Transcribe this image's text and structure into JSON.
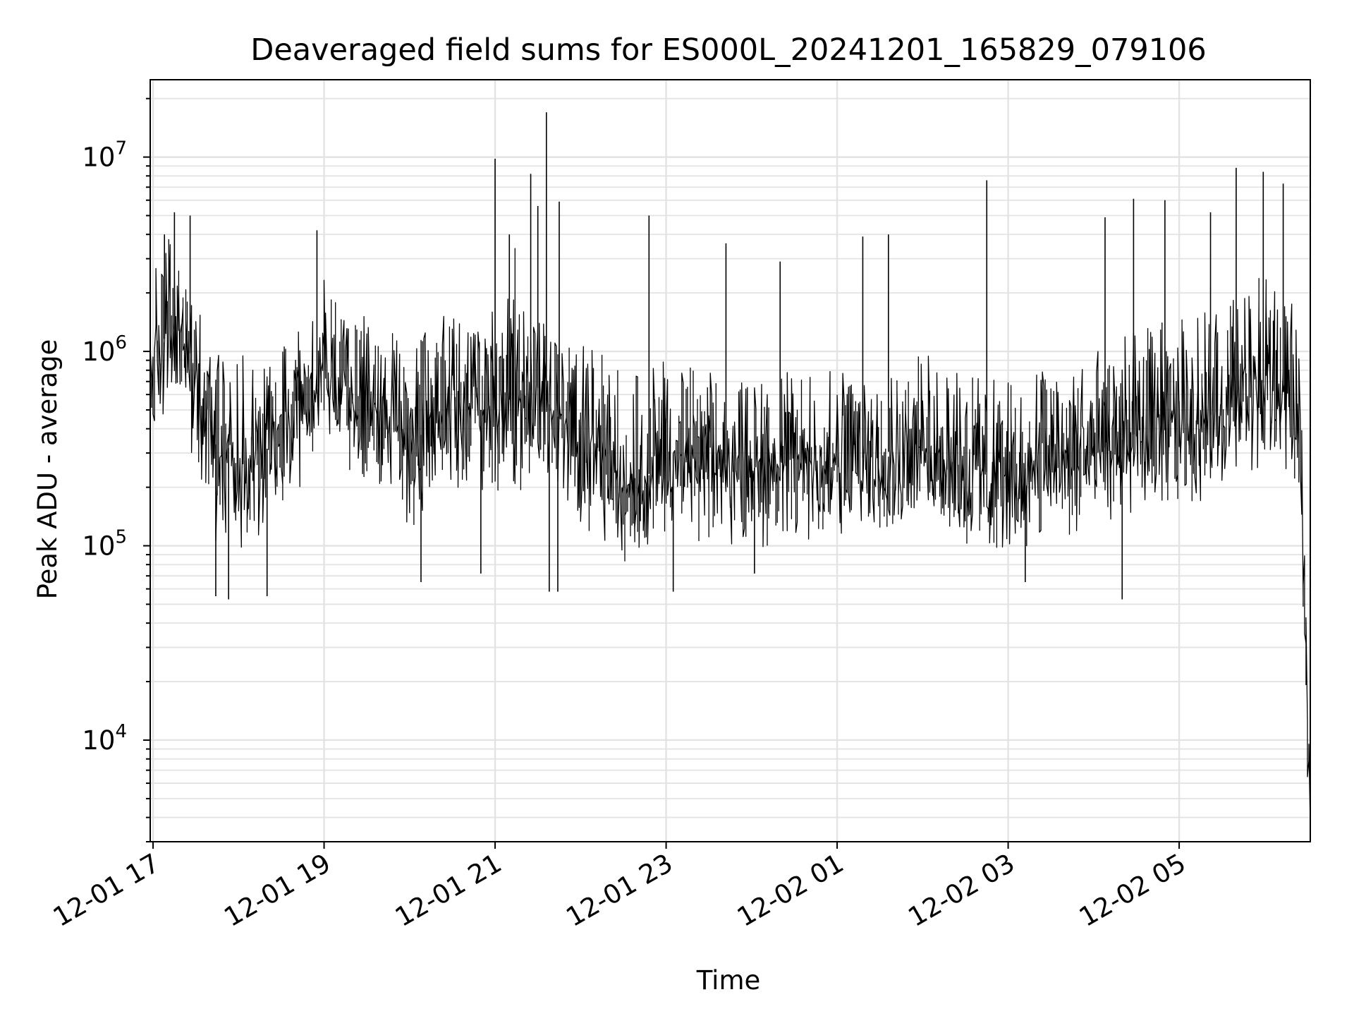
{
  "chart_data": {
    "type": "line",
    "title": "Deaveraged field sums for ES000L_20241201_165829_079106",
    "xlabel": "Time",
    "ylabel": "Peak ADU - average",
    "yscale": "log",
    "xlim": [
      "2024-12-01 16:58",
      "2024-12-02 06:32"
    ],
    "ylim": [
      3000,
      25000000
    ],
    "grid": "on",
    "line_color": "#000000",
    "grid_color": "#e3e3e3",
    "x_ticks": [
      {
        "value": "2024-12-01 17:00",
        "label": "12-01 17"
      },
      {
        "value": "2024-12-01 19:00",
        "label": "12-01 19"
      },
      {
        "value": "2024-12-01 21:00",
        "label": "12-01 21"
      },
      {
        "value": "2024-12-01 23:00",
        "label": "12-01 23"
      },
      {
        "value": "2024-12-02 01:00",
        "label": "12-02 01"
      },
      {
        "value": "2024-12-02 03:00",
        "label": "12-02 03"
      },
      {
        "value": "2024-12-02 05:00",
        "label": "12-02 05"
      }
    ],
    "y_ticks": [
      {
        "value": 10000,
        "base": "10",
        "exp": "4"
      },
      {
        "value": 100000,
        "base": "10",
        "exp": "5"
      },
      {
        "value": 1000000,
        "base": "10",
        "exp": "6"
      },
      {
        "value": 10000000,
        "base": "10",
        "exp": "7"
      }
    ],
    "series": [
      {
        "x": [
          "2024-12-01 16:58",
          "2024-12-01 17:00",
          "2024-12-01 17:05",
          "2024-12-01 17:10",
          "2024-12-01 17:15",
          "2024-12-01 17:20",
          "2024-12-01 17:25",
          "2024-12-01 17:30",
          "2024-12-01 17:35",
          "2024-12-01 17:40",
          "2024-12-01 17:45",
          "2024-12-01 17:50",
          "2024-12-01 17:55",
          "2024-12-01 18:00",
          "2024-12-01 18:15",
          "2024-12-01 18:30",
          "2024-12-01 18:45",
          "2024-12-01 19:00",
          "2024-12-01 19:15",
          "2024-12-01 19:30",
          "2024-12-01 19:45",
          "2024-12-01 20:00",
          "2024-12-01 20:15",
          "2024-12-01 20:30",
          "2024-12-01 20:45",
          "2024-12-01 21:00",
          "2024-12-01 21:15",
          "2024-12-01 21:30",
          "2024-12-01 21:45",
          "2024-12-01 22:00",
          "2024-12-01 22:15",
          "2024-12-01 22:30",
          "2024-12-01 22:45",
          "2024-12-01 23:00",
          "2024-12-01 23:30",
          "2024-12-02 00:00",
          "2024-12-02 00:30",
          "2024-12-02 01:00",
          "2024-12-02 01:30",
          "2024-12-02 02:00",
          "2024-12-02 02:30",
          "2024-12-02 03:00",
          "2024-12-02 03:30",
          "2024-12-02 04:00",
          "2024-12-02 04:30",
          "2024-12-02 05:00",
          "2024-12-02 05:30",
          "2024-12-02 05:50",
          "2024-12-02 06:00",
          "2024-12-02 06:10",
          "2024-12-02 06:20",
          "2024-12-02 06:25",
          "2024-12-02 06:28",
          "2024-12-02 06:30",
          "2024-12-02 06:32"
        ],
        "y": [
          600000,
          900000,
          1100000,
          1200000,
          1300000,
          1400000,
          1000000,
          900000,
          700000,
          500000,
          300000,
          350000,
          300000,
          250000,
          300000,
          350000,
          450000,
          800000,
          650000,
          550000,
          500000,
          300000,
          450000,
          550000,
          500000,
          500000,
          600000,
          650000,
          450000,
          350000,
          300000,
          200000,
          220000,
          300000,
          280000,
          250000,
          280000,
          260000,
          300000,
          320000,
          250000,
          230000,
          280000,
          300000,
          380000,
          400000,
          500000,
          600000,
          700000,
          650000,
          550000,
          300000,
          100000,
          15000,
          5000
        ],
        "y_upper": [
          1500000,
          2200000,
          3500000,
          4500000,
          3200000,
          3000000,
          2200000,
          1800000,
          1500000,
          1200000,
          1000000,
          900000,
          1100000,
          1000000,
          900000,
          1100000,
          1300000,
          2500000,
          1700000,
          1500000,
          1300000,
          1100000,
          1400000,
          1600000,
          1300000,
          1800000,
          3500000,
          1500000,
          1200000,
          1100000,
          1000000,
          800000,
          800000,
          900000,
          800000,
          700000,
          800000,
          800000,
          900000,
          1000000,
          800000,
          700000,
          900000,
          1000000,
          1300000,
          1500000,
          1800000,
          2200000,
          2500000,
          2000000,
          1800000,
          1000000,
          300000,
          80000,
          20000
        ],
        "y_lower": [
          200000,
          300000,
          400000,
          350000,
          450000,
          500000,
          350000,
          250000,
          200000,
          150000,
          100000,
          100000,
          110000,
          90000,
          110000,
          130000,
          150000,
          300000,
          250000,
          200000,
          180000,
          110000,
          160000,
          200000,
          180000,
          160000,
          180000,
          200000,
          150000,
          120000,
          110000,
          80000,
          85000,
          110000,
          100000,
          90000,
          100000,
          95000,
          110000,
          120000,
          90000,
          85000,
          100000,
          110000,
          140000,
          150000,
          180000,
          220000,
          250000,
          240000,
          200000,
          100000,
          40000,
          8000,
          3500
        ]
      }
    ],
    "spikes": [
      {
        "x": "2024-12-01 17:08",
        "y": 4000000
      },
      {
        "x": "2024-12-01 17:15",
        "y": 5200000
      },
      {
        "x": "2024-12-01 17:26",
        "y": 5000000
      },
      {
        "x": "2024-12-01 17:44",
        "y": 55000
      },
      {
        "x": "2024-12-01 17:53",
        "y": 53000
      },
      {
        "x": "2024-12-01 18:20",
        "y": 55000
      },
      {
        "x": "2024-12-01 18:55",
        "y": 4200000
      },
      {
        "x": "2024-12-01 20:08",
        "y": 65000
      },
      {
        "x": "2024-12-01 20:50",
        "y": 72000
      },
      {
        "x": "2024-12-01 21:00",
        "y": 9800000
      },
      {
        "x": "2024-12-01 21:10",
        "y": 4000000
      },
      {
        "x": "2024-12-01 21:25",
        "y": 8200000
      },
      {
        "x": "2024-12-01 21:30",
        "y": 5600000
      },
      {
        "x": "2024-12-01 21:36",
        "y": 17000000
      },
      {
        "x": "2024-12-01 21:38",
        "y": 58000
      },
      {
        "x": "2024-12-01 21:44",
        "y": 58000
      },
      {
        "x": "2024-12-01 21:45",
        "y": 5900000
      },
      {
        "x": "2024-12-01 22:48",
        "y": 5000000
      },
      {
        "x": "2024-12-01 23:05",
        "y": 58000
      },
      {
        "x": "2024-12-01 23:42",
        "y": 3600000
      },
      {
        "x": "2024-12-02 00:02",
        "y": 72000
      },
      {
        "x": "2024-12-02 00:20",
        "y": 2900000
      },
      {
        "x": "2024-12-02 01:18",
        "y": 3900000
      },
      {
        "x": "2024-12-02 01:36",
        "y": 4000000
      },
      {
        "x": "2024-12-02 02:45",
        "y": 7600000
      },
      {
        "x": "2024-12-02 03:12",
        "y": 65000
      },
      {
        "x": "2024-12-02 04:08",
        "y": 4900000
      },
      {
        "x": "2024-12-02 04:20",
        "y": 53000
      },
      {
        "x": "2024-12-02 04:28",
        "y": 6100000
      },
      {
        "x": "2024-12-02 04:50",
        "y": 6000000
      },
      {
        "x": "2024-12-02 05:22",
        "y": 5200000
      },
      {
        "x": "2024-12-02 05:40",
        "y": 8800000
      },
      {
        "x": "2024-12-02 05:59",
        "y": 8400000
      },
      {
        "x": "2024-12-02 06:13",
        "y": 7300000
      }
    ]
  }
}
